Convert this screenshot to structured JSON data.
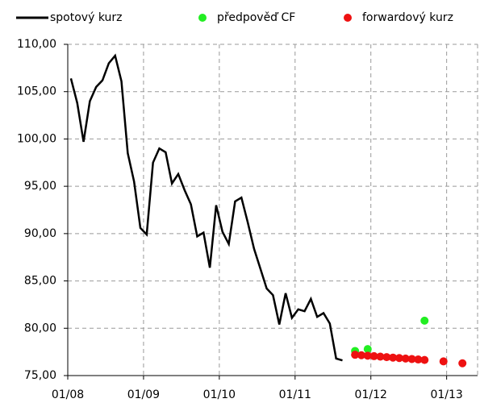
{
  "chart_data": {
    "type": "line",
    "xlim": [
      0,
      64.9
    ],
    "ylim": [
      75,
      110
    ],
    "xticks": [
      {
        "value": 0,
        "label": "01/08"
      },
      {
        "value": 12,
        "label": "01/09"
      },
      {
        "value": 24,
        "label": "01/10"
      },
      {
        "value": 36,
        "label": "01/11"
      },
      {
        "value": 48,
        "label": "01/12"
      },
      {
        "value": 60,
        "label": "01/13"
      }
    ],
    "yticks": [
      {
        "value": 75,
        "label": "75,00"
      },
      {
        "value": 80,
        "label": "80,00"
      },
      {
        "value": 85,
        "label": "85,00"
      },
      {
        "value": 90,
        "label": "90,00"
      },
      {
        "value": 95,
        "label": "95,00"
      },
      {
        "value": 100,
        "label": "100,00"
      },
      {
        "value": 105,
        "label": "105,00"
      },
      {
        "value": 110,
        "label": "110,00"
      }
    ],
    "grid": true,
    "series": [
      {
        "name": "spotový kurz",
        "color": "#000000",
        "kind": "line",
        "x": [
          0.5,
          1.5,
          2.5,
          3.5,
          4.5,
          5.5,
          6.5,
          7.5,
          8.5,
          9.5,
          10.5,
          11.5,
          12.5,
          13.5,
          14.5,
          15.5,
          16.5,
          17.5,
          18.5,
          19.5,
          20.5,
          21.5,
          22.5,
          23.5,
          24.5,
          25.5,
          26.5,
          27.5,
          28.5,
          29.5,
          30.5,
          31.5,
          32.5,
          33.5,
          34.5,
          35.5,
          36.5,
          37.5,
          38.5,
          39.5,
          40.5,
          41.5,
          42.5,
          43.5
        ],
        "values": [
          106.4,
          103.8,
          99.7,
          104.0,
          105.5,
          106.2,
          108.0,
          108.8,
          106.1,
          98.5,
          95.5,
          90.6,
          89.9,
          97.5,
          99.0,
          98.6,
          95.3,
          96.3,
          94.6,
          93.1,
          89.7,
          90.1,
          86.4,
          93.0,
          90.2,
          88.9,
          93.4,
          93.8,
          91.2,
          88.4,
          86.3,
          84.2,
          83.5,
          80.4,
          83.7,
          81.1,
          82.0,
          81.8,
          83.1,
          81.2,
          81.6,
          80.5,
          76.8,
          76.6
        ]
      },
      {
        "name": "předpověď CF",
        "color": "#22ee22",
        "kind": "scatter",
        "x": [
          45.5,
          47.5,
          56.5
        ],
        "values": [
          77.6,
          77.8,
          80.8
        ]
      },
      {
        "name": "forwardový kurz",
        "color": "#ee1111",
        "kind": "scatter",
        "x": [
          45.5,
          46.5,
          47.5,
          48.5,
          49.5,
          50.5,
          51.5,
          52.5,
          53.5,
          54.5,
          55.5,
          56.5,
          59.5,
          62.5
        ],
        "values": [
          77.2,
          77.15,
          77.1,
          77.05,
          77.0,
          76.95,
          76.9,
          76.85,
          76.8,
          76.75,
          76.7,
          76.65,
          76.5,
          76.3
        ]
      }
    ]
  }
}
